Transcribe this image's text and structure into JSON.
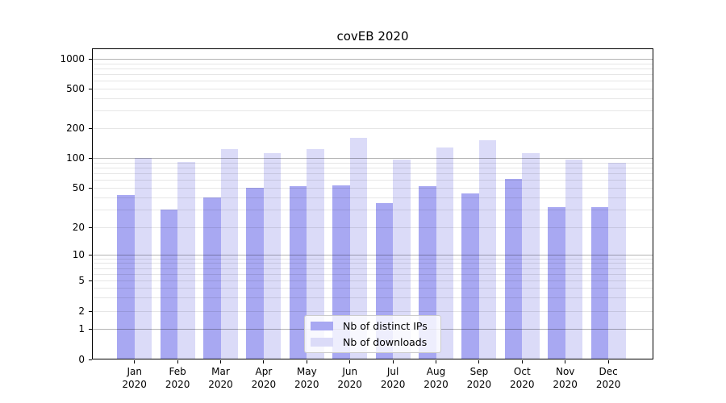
{
  "title": "covEB 2020",
  "chart_data": {
    "type": "bar",
    "title": "covEB 2020",
    "categories": [
      "Jan 2020",
      "Feb 2020",
      "Mar 2020",
      "Apr 2020",
      "May 2020",
      "Jun 2020",
      "Jul 2020",
      "Aug 2020",
      "Sep 2020",
      "Oct 2020",
      "Nov 2020",
      "Dec 2020"
    ],
    "series": [
      {
        "name": "Nb of distinct IPs",
        "color": "#a8a8f2",
        "values": [
          42,
          30,
          40,
          50,
          52,
          53,
          35,
          52,
          44,
          62,
          32,
          32
        ]
      },
      {
        "name": "Nb of downloads",
        "color": "#dbdbf8",
        "values": [
          100,
          92,
          123,
          113,
          124,
          160,
          97,
          128,
          150,
          112,
          97,
          90
        ]
      }
    ],
    "xlabel": "",
    "ylabel": "",
    "y_axis": {
      "scale": "symlog",
      "tick_values": [
        0,
        1,
        2,
        5,
        10,
        20,
        50,
        100,
        200,
        500,
        1000
      ],
      "range": [
        0,
        1300
      ]
    },
    "grid": true,
    "minor_grid": true,
    "legend_position": "lower center"
  },
  "colors": {
    "background": "#ffffff",
    "major_gridline": "#b4b4b4",
    "minor_gridline": "#e6e6e6",
    "spine": "#000000",
    "text": "#000000"
  }
}
